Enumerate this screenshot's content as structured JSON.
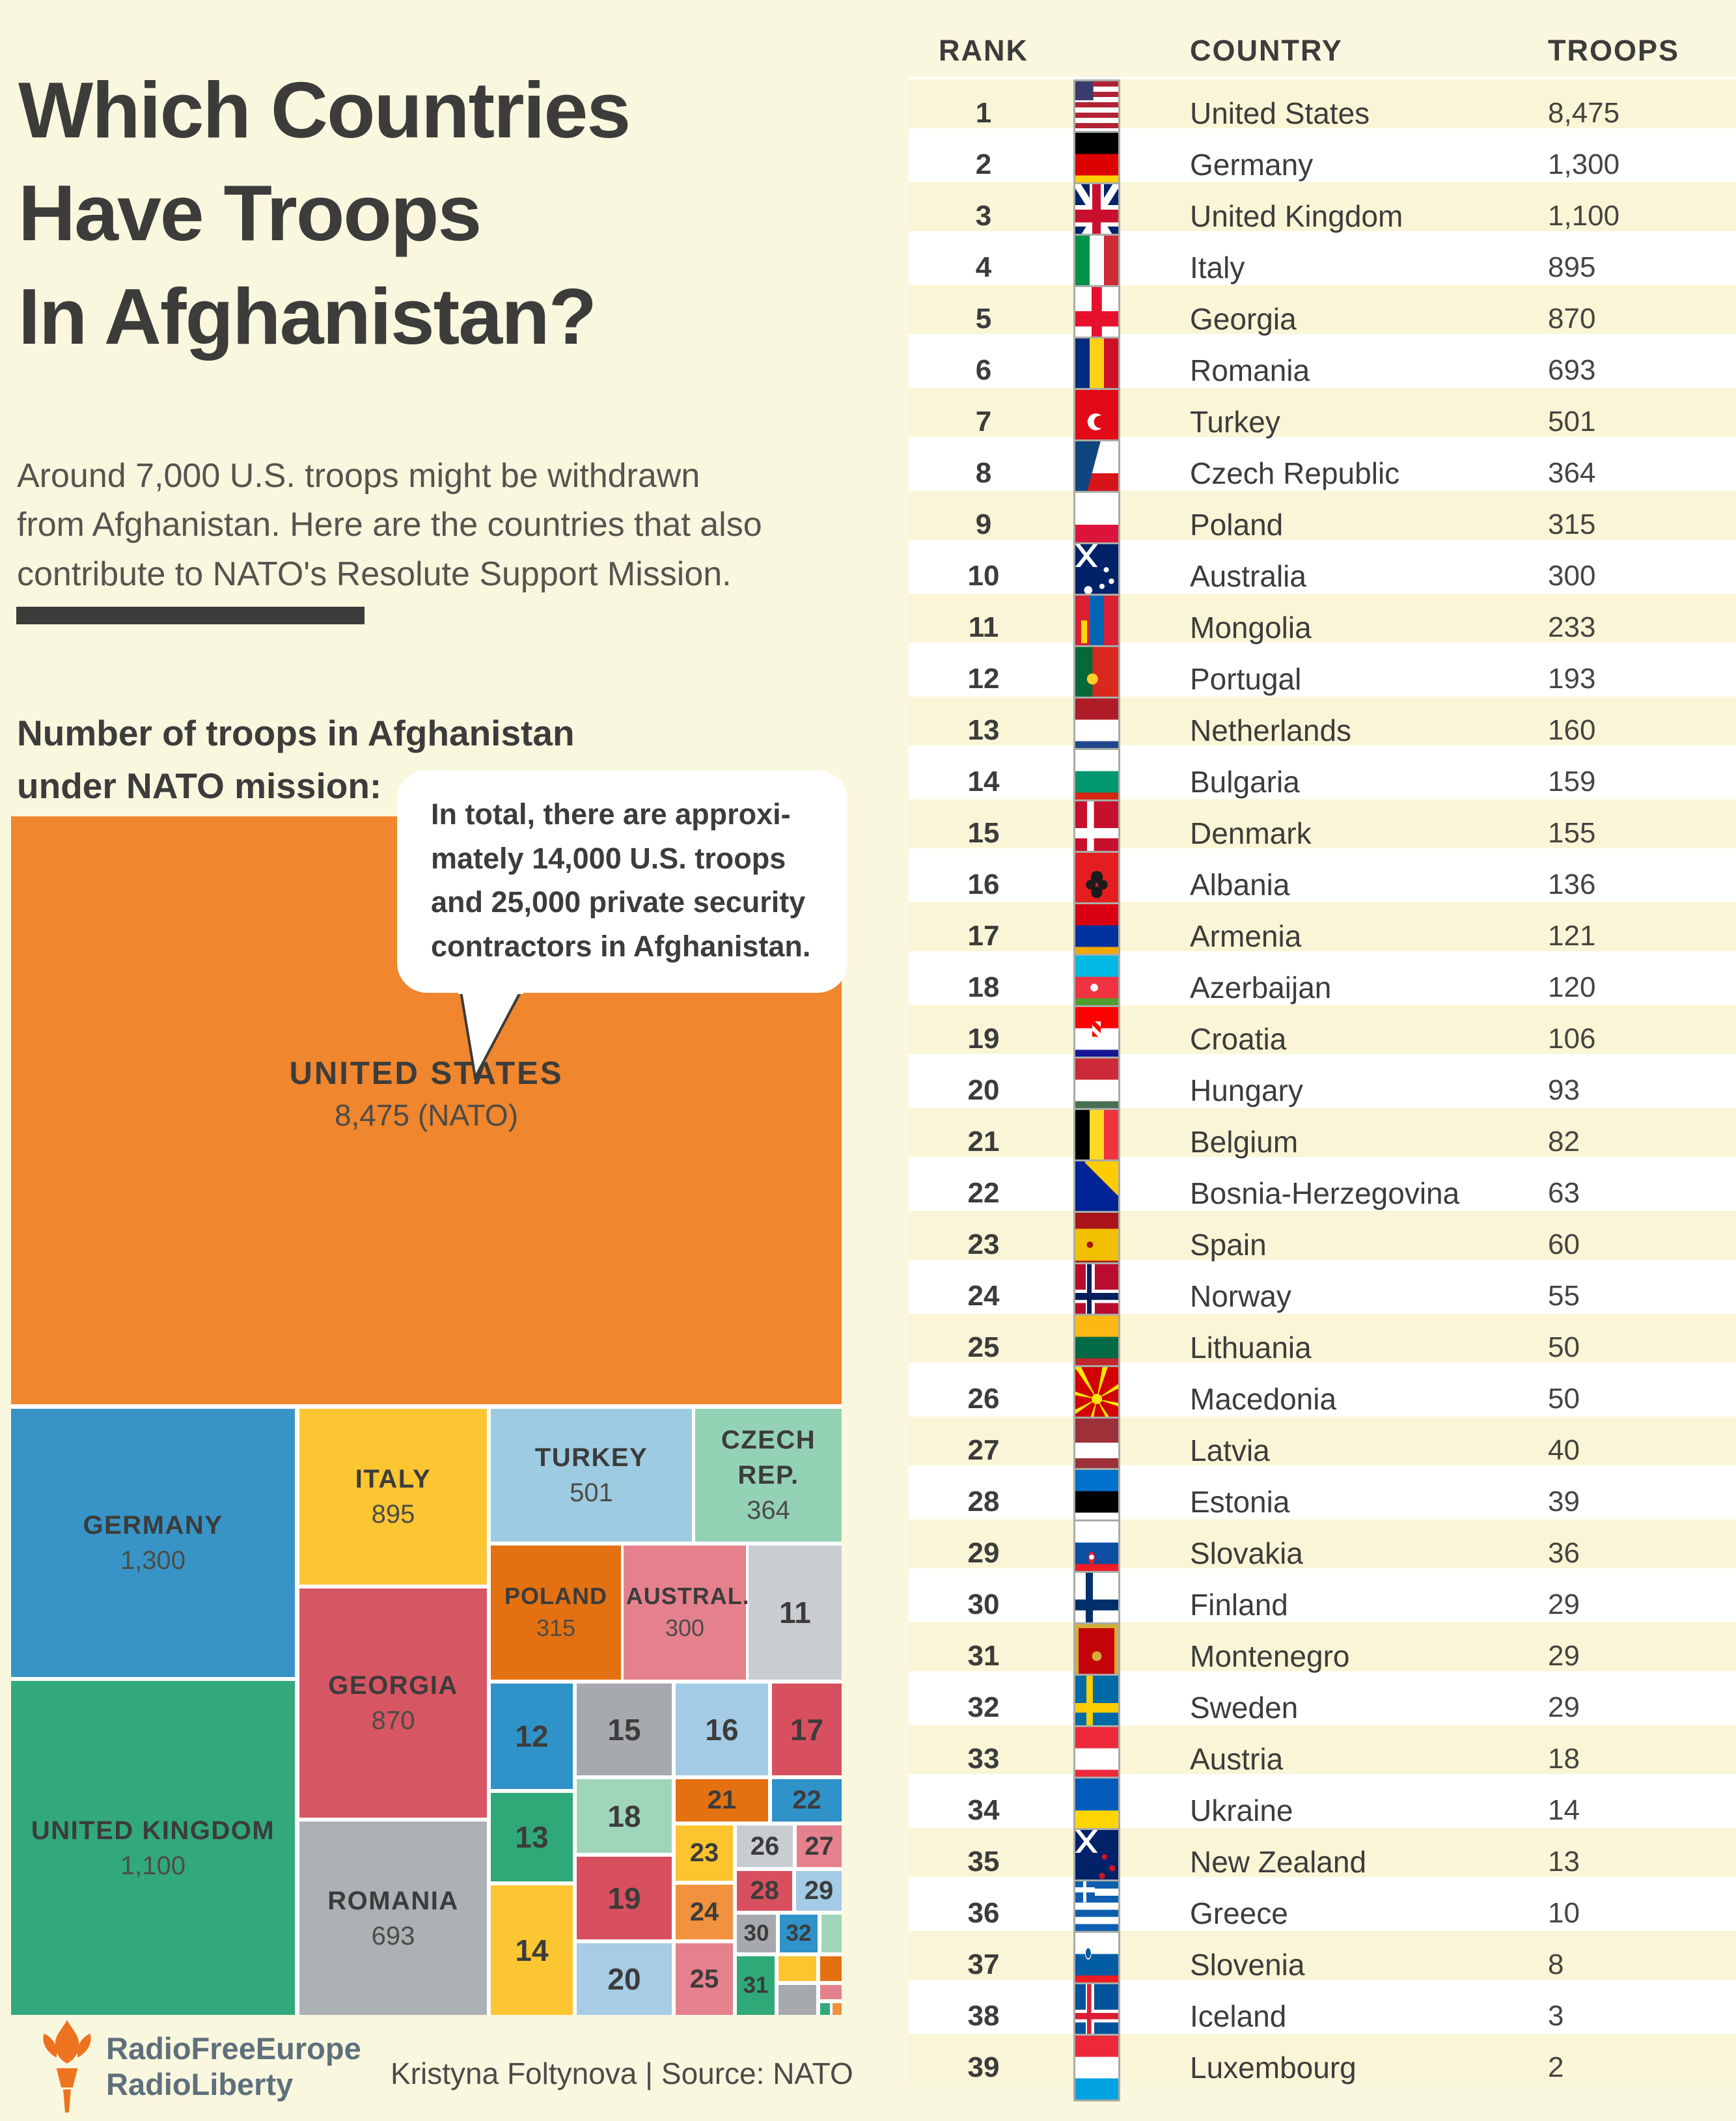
{
  "page": {
    "background": "#FAF7DF"
  },
  "header": {
    "title_lines": [
      "Which Countries",
      "Have Troops",
      "In Afghanistan?"
    ],
    "subtitle_lines": [
      "Around 7,000 U.S. troops might be withdrawn",
      "from Afghanistan. Here are the countries that also",
      "contribute to NATO's Resolute Support Mission."
    ],
    "section_heading_lines": [
      "Number of troops in Afghanistan",
      "under NATO mission:"
    ]
  },
  "callout": {
    "lines": [
      "In total, there are approxi-",
      "mately 14,000 U.S. troops",
      "and 25,000 private security",
      "contractors in Afghanistan."
    ]
  },
  "chart_data": {
    "type": "treemap",
    "title": "Number of troops in Afghanistan under NATO mission",
    "units": "troops",
    "items": [
      {
        "rank": 1,
        "country": "United States",
        "troops": 8475
      },
      {
        "rank": 2,
        "country": "Germany",
        "troops": 1300
      },
      {
        "rank": 3,
        "country": "United Kingdom",
        "troops": 1100
      },
      {
        "rank": 4,
        "country": "Italy",
        "troops": 895
      },
      {
        "rank": 5,
        "country": "Georgia",
        "troops": 870
      },
      {
        "rank": 6,
        "country": "Romania",
        "troops": 693
      },
      {
        "rank": 7,
        "country": "Turkey",
        "troops": 501
      },
      {
        "rank": 8,
        "country": "Czech Republic",
        "troops": 364
      },
      {
        "rank": 9,
        "country": "Poland",
        "troops": 315
      },
      {
        "rank": 10,
        "country": "Australia",
        "troops": 300
      },
      {
        "rank": 11,
        "country": "Mongolia",
        "troops": 233
      },
      {
        "rank": 12,
        "country": "Portugal",
        "troops": 193
      },
      {
        "rank": 13,
        "country": "Netherlands",
        "troops": 160
      },
      {
        "rank": 14,
        "country": "Bulgaria",
        "troops": 159
      },
      {
        "rank": 15,
        "country": "Denmark",
        "troops": 155
      },
      {
        "rank": 16,
        "country": "Albania",
        "troops": 136
      },
      {
        "rank": 17,
        "country": "Armenia",
        "troops": 121
      },
      {
        "rank": 18,
        "country": "Azerbaijan",
        "troops": 120
      },
      {
        "rank": 19,
        "country": "Croatia",
        "troops": 106
      },
      {
        "rank": 20,
        "country": "Hungary",
        "troops": 93
      },
      {
        "rank": 21,
        "country": "Belgium",
        "troops": 82
      },
      {
        "rank": 22,
        "country": "Bosnia-Herzegovina",
        "troops": 63
      },
      {
        "rank": 23,
        "country": "Spain",
        "troops": 60
      },
      {
        "rank": 24,
        "country": "Norway",
        "troops": 55
      },
      {
        "rank": 25,
        "country": "Lithuania",
        "troops": 50
      },
      {
        "rank": 26,
        "country": "Macedonia",
        "troops": 50
      },
      {
        "rank": 27,
        "country": "Latvia",
        "troops": 40
      },
      {
        "rank": 28,
        "country": "Estonia",
        "troops": 39
      },
      {
        "rank": 29,
        "country": "Slovakia",
        "troops": 36
      },
      {
        "rank": 30,
        "country": "Finland",
        "troops": 29
      },
      {
        "rank": 31,
        "country": "Montenegro",
        "troops": 29
      },
      {
        "rank": 32,
        "country": "Sweden",
        "troops": 29
      },
      {
        "rank": 33,
        "country": "Austria",
        "troops": 18
      },
      {
        "rank": 34,
        "country": "Ukraine",
        "troops": 14
      },
      {
        "rank": 35,
        "country": "New Zealand",
        "troops": 13
      },
      {
        "rank": 36,
        "country": "Greece",
        "troops": 10
      },
      {
        "rank": 37,
        "country": "Slovenia",
        "troops": 8
      },
      {
        "rank": 38,
        "country": "Iceland",
        "troops": 3
      },
      {
        "rank": 39,
        "country": "Luxembourg",
        "troops": 2
      }
    ],
    "treemap_display": {
      "1": {
        "name": "UNITED STATES",
        "value": "8,475 (NATO)"
      },
      "2": {
        "name": "GERMANY",
        "value": "1,300"
      },
      "3": {
        "name": "UNITED KINGDOM",
        "value": "1,100"
      },
      "4": {
        "name": "ITALY",
        "value": "895"
      },
      "5": {
        "name": "GEORGIA",
        "value": "870"
      },
      "6": {
        "name": "ROMANIA",
        "value": "693"
      },
      "7": {
        "name": "TURKEY",
        "value": "501"
      },
      "8": {
        "name": "CZECH REP.",
        "value": "364"
      },
      "9": {
        "name": "POLAND",
        "value": "315"
      },
      "10": {
        "name": "AUSTRAL.",
        "value": "300"
      }
    },
    "block_colors": {
      "1": "#F0862D",
      "2": "#3894C6",
      "3": "#31A97D",
      "4": "#FCC633",
      "5": "#D75663",
      "6": "#ACB1B5",
      "7": "#9DCBE1",
      "8": "#94D2B5",
      "9": "#E37111",
      "10": "#E5818D",
      "11": "#C9CDD2",
      "12": "#2F92C8",
      "13": "#2FA977",
      "14": "#FCC633",
      "15": "#A6A9AD",
      "16": "#A3CBE5",
      "17": "#D8505F",
      "18": "#9FD6B9",
      "19": "#D8505F",
      "20": "#A6CDE3",
      "21": "#E37111",
      "22": "#2F92C8",
      "23": "#FCC52F",
      "24": "#F0923E",
      "25": "#E5818D",
      "26": "#C9CDD2",
      "27": "#E5818D",
      "28": "#D8505F",
      "29": "#A3CBE5",
      "30": "#A6A9AD",
      "31": "#2FA977",
      "32": "#2F92C8",
      "33": "#9FD6B9",
      "34": "#FCC52F",
      "35": "#E37111",
      "36": "#A6A9AD",
      "37": "#E5818D",
      "38": "#2FA977",
      "39": "#F0923E"
    },
    "legend_position": "none",
    "grid": false
  },
  "table": {
    "columns": [
      "RANK",
      "COUNTRY",
      "TROOPS"
    ],
    "rows": [
      {
        "rank": "1",
        "flag": "us",
        "country": "United States",
        "troops": "8,475"
      },
      {
        "rank": "2",
        "flag": "de",
        "country": "Germany",
        "troops": "1,300"
      },
      {
        "rank": "3",
        "flag": "gb",
        "country": "United Kingdom",
        "troops": "1,100"
      },
      {
        "rank": "4",
        "flag": "it",
        "country": "Italy",
        "troops": "895"
      },
      {
        "rank": "5",
        "flag": "ge",
        "country": "Georgia",
        "troops": "870"
      },
      {
        "rank": "6",
        "flag": "ro",
        "country": "Romania",
        "troops": "693"
      },
      {
        "rank": "7",
        "flag": "tr",
        "country": "Turkey",
        "troops": "501"
      },
      {
        "rank": "8",
        "flag": "cz",
        "country": "Czech Republic",
        "troops": "364"
      },
      {
        "rank": "9",
        "flag": "pl",
        "country": "Poland",
        "troops": "315"
      },
      {
        "rank": "10",
        "flag": "au",
        "country": "Australia",
        "troops": "300"
      },
      {
        "rank": "11",
        "flag": "mn",
        "country": "Mongolia",
        "troops": "233"
      },
      {
        "rank": "12",
        "flag": "pt",
        "country": "Portugal",
        "troops": "193"
      },
      {
        "rank": "13",
        "flag": "nl",
        "country": "Netherlands",
        "troops": "160"
      },
      {
        "rank": "14",
        "flag": "bg",
        "country": "Bulgaria",
        "troops": "159"
      },
      {
        "rank": "15",
        "flag": "dk",
        "country": "Denmark",
        "troops": "155"
      },
      {
        "rank": "16",
        "flag": "al",
        "country": "Albania",
        "troops": "136"
      },
      {
        "rank": "17",
        "flag": "am",
        "country": "Armenia",
        "troops": "121"
      },
      {
        "rank": "18",
        "flag": "az",
        "country": "Azerbaijan",
        "troops": "120"
      },
      {
        "rank": "19",
        "flag": "hr",
        "country": "Croatia",
        "troops": "106"
      },
      {
        "rank": "20",
        "flag": "hu",
        "country": "Hungary",
        "troops": "93"
      },
      {
        "rank": "21",
        "flag": "be",
        "country": "Belgium",
        "troops": "82"
      },
      {
        "rank": "22",
        "flag": "ba",
        "country": "Bosnia-Herzegovina",
        "troops": "63"
      },
      {
        "rank": "23",
        "flag": "es",
        "country": "Spain",
        "troops": "60"
      },
      {
        "rank": "24",
        "flag": "no",
        "country": "Norway",
        "troops": "55"
      },
      {
        "rank": "25",
        "flag": "lt",
        "country": "Lithuania",
        "troops": "50"
      },
      {
        "rank": "26",
        "flag": "mk",
        "country": "Macedonia",
        "troops": "50"
      },
      {
        "rank": "27",
        "flag": "lv",
        "country": "Latvia",
        "troops": "40"
      },
      {
        "rank": "28",
        "flag": "ee",
        "country": "Estonia",
        "troops": "39"
      },
      {
        "rank": "29",
        "flag": "sk",
        "country": "Slovakia",
        "troops": "36"
      },
      {
        "rank": "30",
        "flag": "fi",
        "country": "Finland",
        "troops": "29"
      },
      {
        "rank": "31",
        "flag": "me",
        "country": "Montenegro",
        "troops": "29"
      },
      {
        "rank": "32",
        "flag": "se",
        "country": "Sweden",
        "troops": "29"
      },
      {
        "rank": "33",
        "flag": "at",
        "country": "Austria",
        "troops": "18"
      },
      {
        "rank": "34",
        "flag": "ua",
        "country": "Ukraine",
        "troops": "14"
      },
      {
        "rank": "35",
        "flag": "nz",
        "country": "New Zealand",
        "troops": "13"
      },
      {
        "rank": "36",
        "flag": "gr",
        "country": "Greece",
        "troops": "10"
      },
      {
        "rank": "37",
        "flag": "si",
        "country": "Slovenia",
        "troops": "8"
      },
      {
        "rank": "38",
        "flag": "is",
        "country": "Iceland",
        "troops": "3"
      },
      {
        "rank": "39",
        "flag": "lu",
        "country": "Luxembourg",
        "troops": "2"
      }
    ]
  },
  "footer": {
    "logo_lines": [
      "RadioFreeEurope",
      "RadioLiberty"
    ],
    "credit": "Kristyna Foltynova | Source: NATO",
    "accent_color": "#EE7320"
  }
}
